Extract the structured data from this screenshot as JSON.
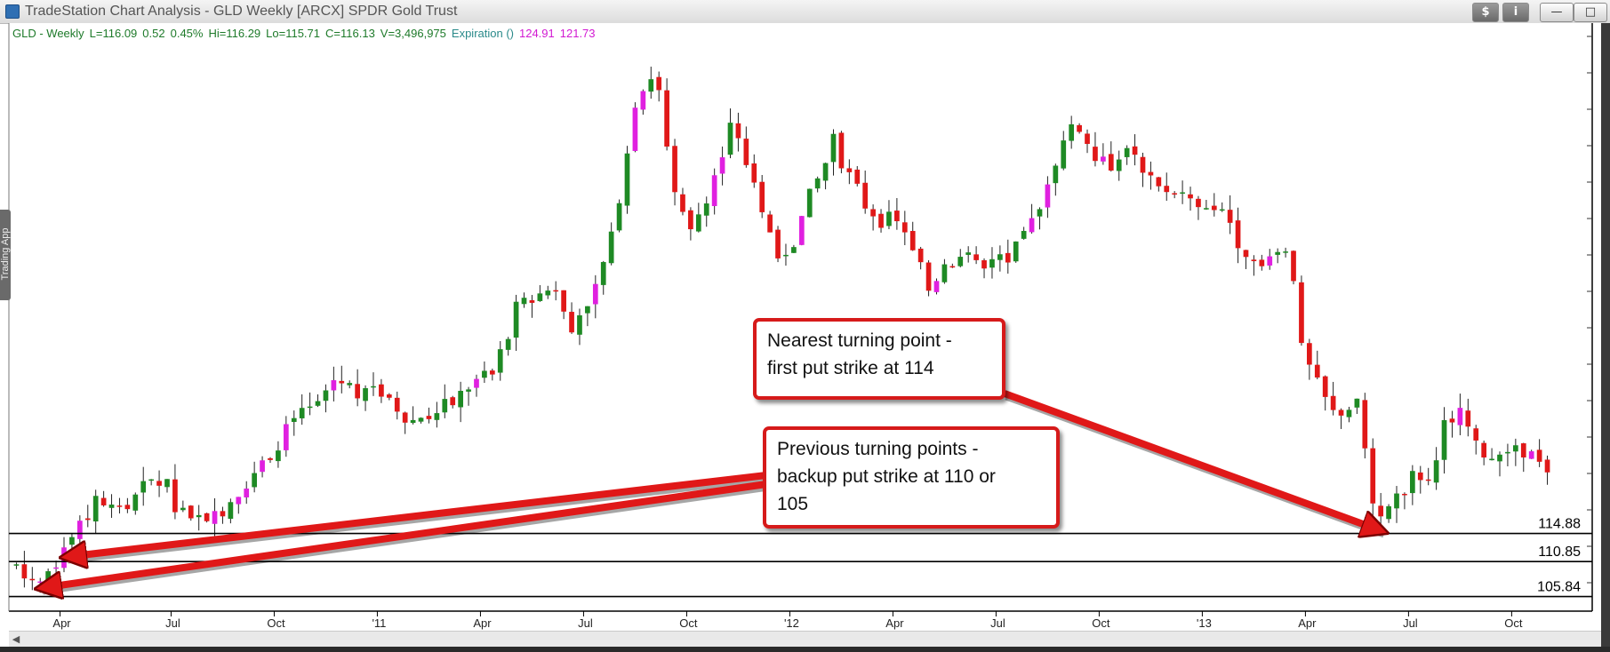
{
  "window": {
    "title": "TradeStation Chart Analysis - GLD Weekly [ARCX] SPDR Gold Trust",
    "buttons": {
      "dollar": "$",
      "info": "i",
      "minimize": "—",
      "maximize": "□"
    },
    "side_tab": "Trading App"
  },
  "status": {
    "symbol": "GLD - Weekly",
    "last": "L=116.09",
    "change": "0.52",
    "percent": "0.45%",
    "high": "Hi=116.29",
    "low": "Lo=115.71",
    "close": "C=116.13",
    "volume": "V=3,496,975",
    "expiration": "Expiration ()",
    "value1": "124.91",
    "value2": "121.73"
  },
  "callouts": {
    "nearest": [
      "Nearest turning point -",
      "first put strike at 114"
    ],
    "previous": [
      "Previous turning points -",
      "backup put strike at 110 or",
      "105"
    ]
  },
  "colors": {
    "up": "#1e8a24",
    "down": "#e01818",
    "up_alt": "#e020e0",
    "arrow": "#e01818",
    "status_green": "#1e7a2a",
    "status_magenta": "#d21ad2"
  },
  "chart_data": {
    "type": "candlestick",
    "x_tick_labels": [
      "Apr",
      "Jul",
      "Oct",
      "'11",
      "Apr",
      "Jul",
      "Oct",
      "'12",
      "Apr",
      "Jul",
      "Oct",
      "'13",
      "Apr",
      "Jul",
      "Oct"
    ],
    "y_range": [
      104,
      185
    ],
    "support_levels": [
      114.88,
      110.85,
      105.84
    ],
    "support_labels": [
      "114.88",
      "110.85",
      "105.84"
    ],
    "anchors": [
      [
        0,
        110.3
      ],
      [
        3,
        108.0
      ],
      [
        5,
        111.0
      ],
      [
        7,
        114.5
      ],
      [
        9,
        117.5
      ],
      [
        10,
        120.0
      ],
      [
        14,
        118.5
      ],
      [
        17,
        122.5
      ],
      [
        19,
        121.5
      ],
      [
        20,
        119.0
      ],
      [
        23,
        117.0
      ],
      [
        26,
        118.5
      ],
      [
        28,
        121.0
      ],
      [
        31,
        125.0
      ],
      [
        35,
        131.0
      ],
      [
        38,
        133.0
      ],
      [
        40,
        137.0
      ],
      [
        43,
        135.5
      ],
      [
        45,
        136.5
      ],
      [
        48,
        133.0
      ],
      [
        50,
        131.0
      ],
      [
        52,
        132.5
      ],
      [
        55,
        133.5
      ],
      [
        57,
        136.0
      ],
      [
        60,
        137.5
      ],
      [
        63,
        147.0
      ],
      [
        66,
        149.0
      ],
      [
        68,
        150.5
      ],
      [
        70,
        145.0
      ],
      [
        73,
        150.0
      ],
      [
        75,
        157.0
      ],
      [
        77,
        170.0
      ],
      [
        78,
        177.0
      ],
      [
        80,
        180.5
      ],
      [
        81,
        178.0
      ],
      [
        83,
        164.0
      ],
      [
        85,
        158.0
      ],
      [
        87,
        163.5
      ],
      [
        89,
        169.0
      ],
      [
        90,
        173.0
      ],
      [
        92,
        168.0
      ],
      [
        94,
        162.0
      ],
      [
        96,
        154.0
      ],
      [
        98,
        157.0
      ],
      [
        100,
        163.0
      ],
      [
        102,
        168.0
      ],
      [
        103,
        171.0
      ],
      [
        105,
        166.0
      ],
      [
        107,
        162.0
      ],
      [
        109,
        160.0
      ],
      [
        111,
        159.5
      ],
      [
        113,
        155.0
      ],
      [
        115,
        150.0
      ],
      [
        117,
        153.5
      ],
      [
        119,
        155.0
      ],
      [
        121,
        153.0
      ],
      [
        123,
        155.0
      ],
      [
        125,
        154.0
      ],
      [
        127,
        157.0
      ],
      [
        130,
        165.0
      ],
      [
        132,
        172.0
      ],
      [
        134,
        173.0
      ],
      [
        136,
        169.0
      ],
      [
        138,
        168.0
      ],
      [
        140,
        171.0
      ],
      [
        142,
        166.0
      ],
      [
        144,
        164.0
      ],
      [
        146,
        164.5
      ],
      [
        148,
        162.0
      ],
      [
        150,
        161.0
      ],
      [
        152,
        162.0
      ],
      [
        154,
        157.0
      ],
      [
        156,
        154.0
      ],
      [
        158,
        154.5
      ],
      [
        160,
        156.0
      ],
      [
        161,
        152.0
      ],
      [
        162,
        141.0
      ],
      [
        164,
        136.0
      ],
      [
        166,
        132.0
      ],
      [
        168,
        133.0
      ],
      [
        169,
        133.0
      ],
      [
        170,
        128.0
      ],
      [
        171,
        120.0
      ],
      [
        172,
        117.0
      ],
      [
        174,
        120.0
      ],
      [
        176,
        123.0
      ],
      [
        178,
        123.5
      ],
      [
        179,
        126.0
      ],
      [
        180,
        130.0
      ],
      [
        182,
        133.0
      ],
      [
        184,
        127.0
      ],
      [
        186,
        126.0
      ],
      [
        188,
        125.5
      ],
      [
        190,
        127.0
      ],
      [
        191,
        126.0
      ],
      [
        193,
        123.0
      ]
    ]
  }
}
